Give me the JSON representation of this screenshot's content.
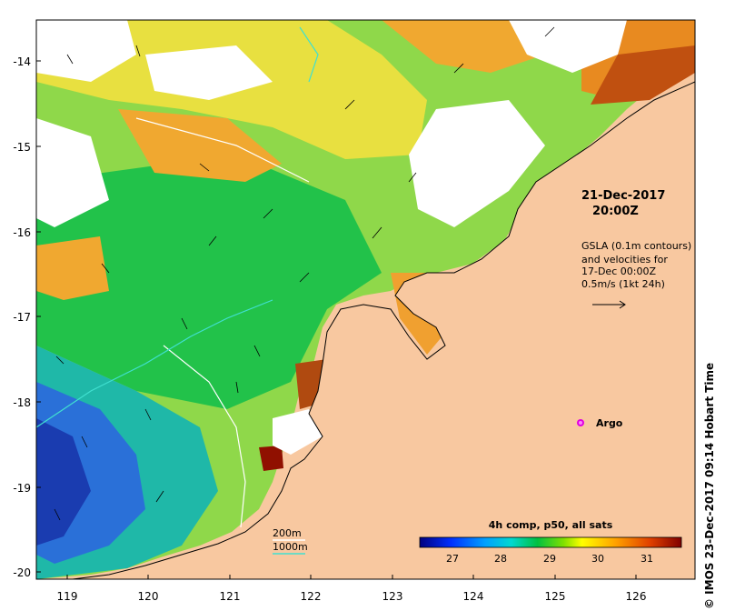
{
  "map": {
    "date_label": "21-Dec-2017",
    "time_label": "20:00Z",
    "gsla_lines": [
      "GSLA (0.1m contours)",
      "and velocities for",
      "17-Dec 00:00Z",
      "0.5m/s (1kt 24h)"
    ],
    "argo_label": "Argo",
    "depth_legend": [
      "200m",
      "1000m"
    ],
    "colorbar_title": "4h comp, p50, all sats",
    "colorbar_ticks": [
      "27",
      "28",
      "29",
      "30",
      "31"
    ],
    "side_credit": "© IMOS 23-Dec-2017 09:14 Hobart Time",
    "lon_ticks": [
      "119",
      "120",
      "121",
      "122",
      "123",
      "124",
      "125",
      "126"
    ],
    "lat_ticks": [
      "-14",
      "-15",
      "-16",
      "-17",
      "-18",
      "-19",
      "-20"
    ],
    "colors": {
      "land": "#f8c8a0",
      "no_data": "#ffffff",
      "isobath_200": "#ffffff",
      "isobath_1000": "#40e0d0",
      "argo_marker": "#e000e0"
    }
  }
}
